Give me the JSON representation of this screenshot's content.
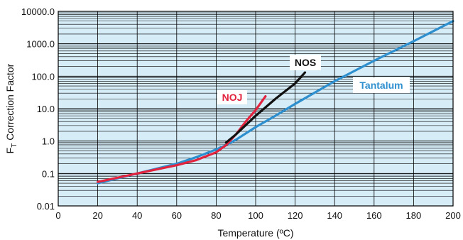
{
  "chart_data": {
    "type": "line",
    "title": "",
    "xlabel": "Temperature (ºC)",
    "ylabel": "F",
    "ylabel_subscript": "T",
    "ylabel_suffix": " Correction Factor",
    "xlim": [
      0,
      200
    ],
    "ylim": [
      0.01,
      10000
    ],
    "yscale": "log",
    "grid": true,
    "x_ticks": [
      "0",
      "20",
      "40",
      "60",
      "80",
      "100",
      "120",
      "140",
      "160",
      "180",
      "200"
    ],
    "y_ticks": [
      "0.01",
      "0.1",
      "1.0",
      "10.0",
      "100.0",
      "1000.0",
      "10000.0"
    ],
    "plot_background": "#d6ecf7",
    "series": [
      {
        "name": "Tantalum",
        "color": "#2e8fcf",
        "x": [
          20,
          40,
          60,
          70,
          80,
          85,
          90,
          100,
          110,
          120,
          140,
          160,
          180,
          200
        ],
        "y": [
          0.05,
          0.1,
          0.2,
          0.32,
          0.55,
          0.75,
          1.1,
          2.7,
          6,
          14,
          70,
          300,
          1200,
          5000
        ]
      },
      {
        "name": "NOJ",
        "color": "#e2243f",
        "x": [
          20,
          40,
          60,
          70,
          80,
          85,
          90,
          95,
          100,
          105
        ],
        "y": [
          0.055,
          0.1,
          0.18,
          0.26,
          0.45,
          0.75,
          1.6,
          4,
          9,
          24
        ]
      },
      {
        "name": "NOS",
        "color": "#111111",
        "x": [
          85,
          90,
          100,
          110,
          120,
          125
        ],
        "y": [
          0.9,
          1.6,
          6,
          20,
          60,
          130
        ]
      }
    ]
  }
}
